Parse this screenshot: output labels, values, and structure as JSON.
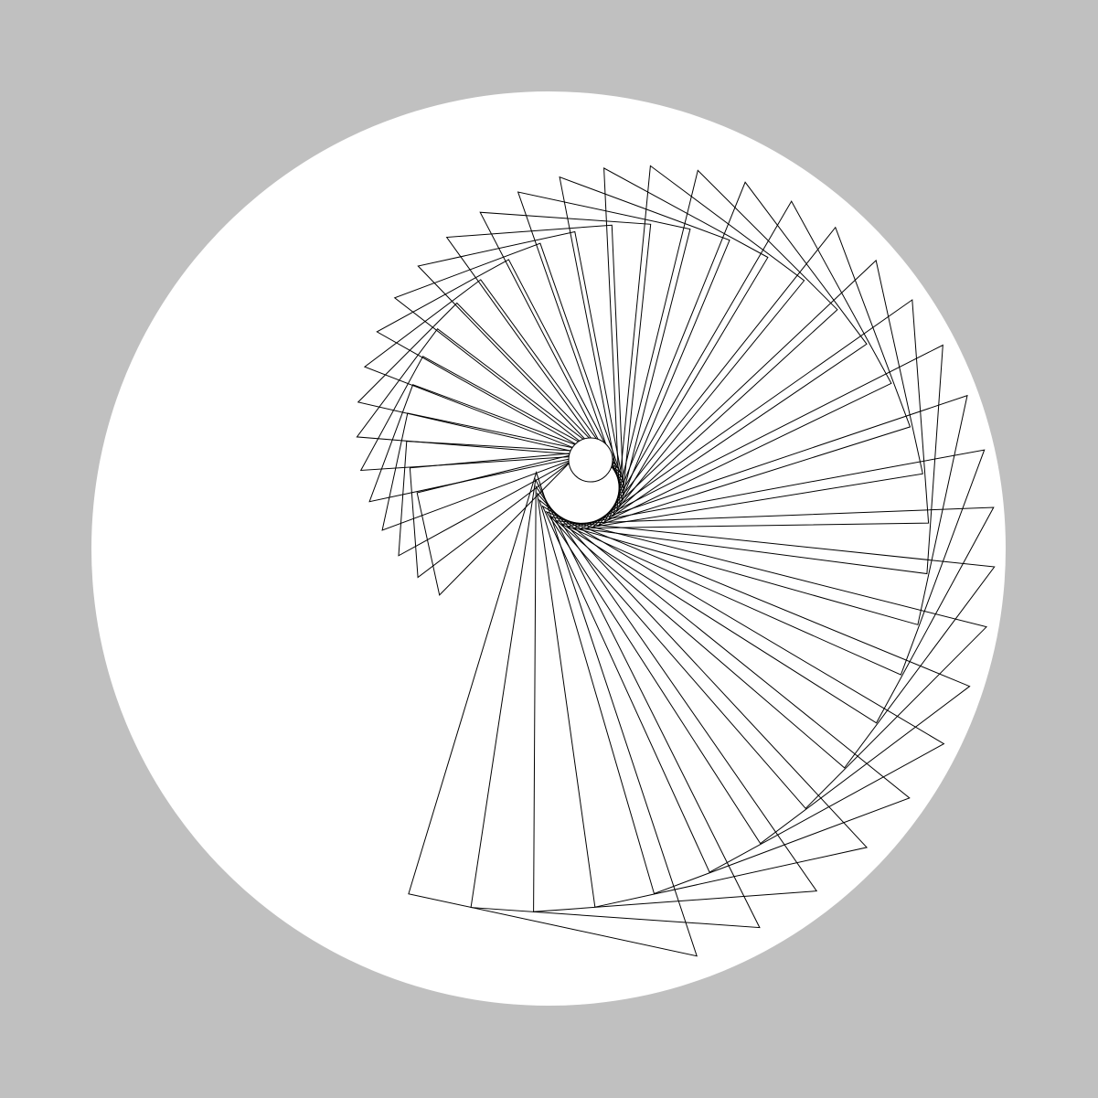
{
  "colors": {
    "background": "#c0c0c0",
    "disc": "#ffffff",
    "stroke": "#000000"
  },
  "figure": {
    "description_shape": "rotating-triangle-spiral",
    "triangle_count": 37,
    "has_center_hole": true
  }
}
